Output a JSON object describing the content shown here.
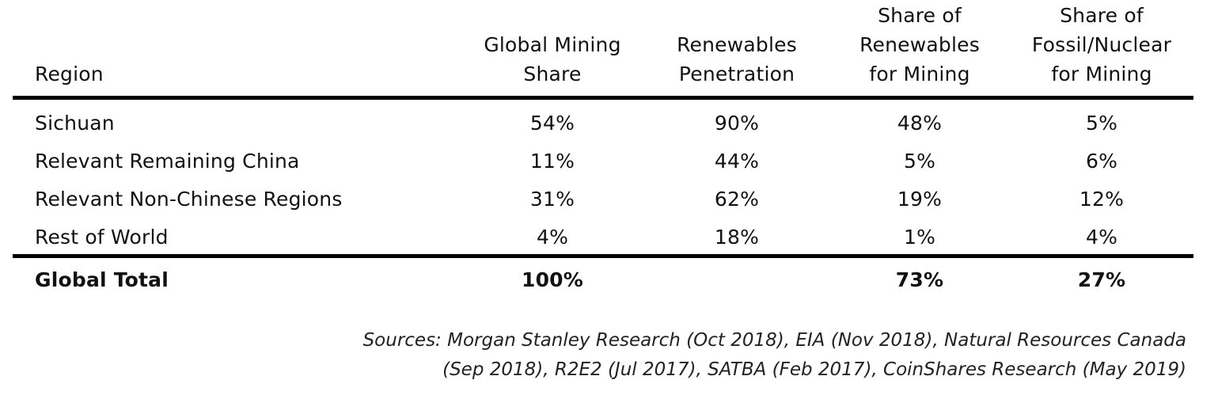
{
  "table": {
    "headers": {
      "region": "Region",
      "global_mining_share": "Global Mining\nShare",
      "renewables_penetration": "Renewables\nPenetration",
      "share_renewables": "Share of\nRenewables\nfor Mining",
      "share_fossil": "Share of\nFossil/Nuclear\nfor Mining"
    },
    "rows": [
      {
        "region": "Sichuan",
        "global_mining_share": "54%",
        "renewables_penetration": "90%",
        "share_renewables": "48%",
        "share_fossil": "5%"
      },
      {
        "region": "Relevant Remaining China",
        "global_mining_share": "11%",
        "renewables_penetration": "44%",
        "share_renewables": "5%",
        "share_fossil": "6%"
      },
      {
        "region": "Relevant Non-Chinese Regions",
        "global_mining_share": "31%",
        "renewables_penetration": "62%",
        "share_renewables": "19%",
        "share_fossil": "12%"
      },
      {
        "region": "Rest of World",
        "global_mining_share": "4%",
        "renewables_penetration": "18%",
        "share_renewables": "1%",
        "share_fossil": "4%"
      }
    ],
    "total": {
      "region": "Global Total",
      "global_mining_share": "100%",
      "renewables_penetration": "",
      "share_renewables": "73%",
      "share_fossil": "27%"
    }
  },
  "sources": {
    "line1": "Sources: Morgan Stanley Research (Oct 2018), EIA (Nov 2018), Natural Resources Canada",
    "line2": "(Sep 2018), R2E2 (Jul 2017), SATBA (Feb 2017), CoinShares Research (May 2019)"
  }
}
